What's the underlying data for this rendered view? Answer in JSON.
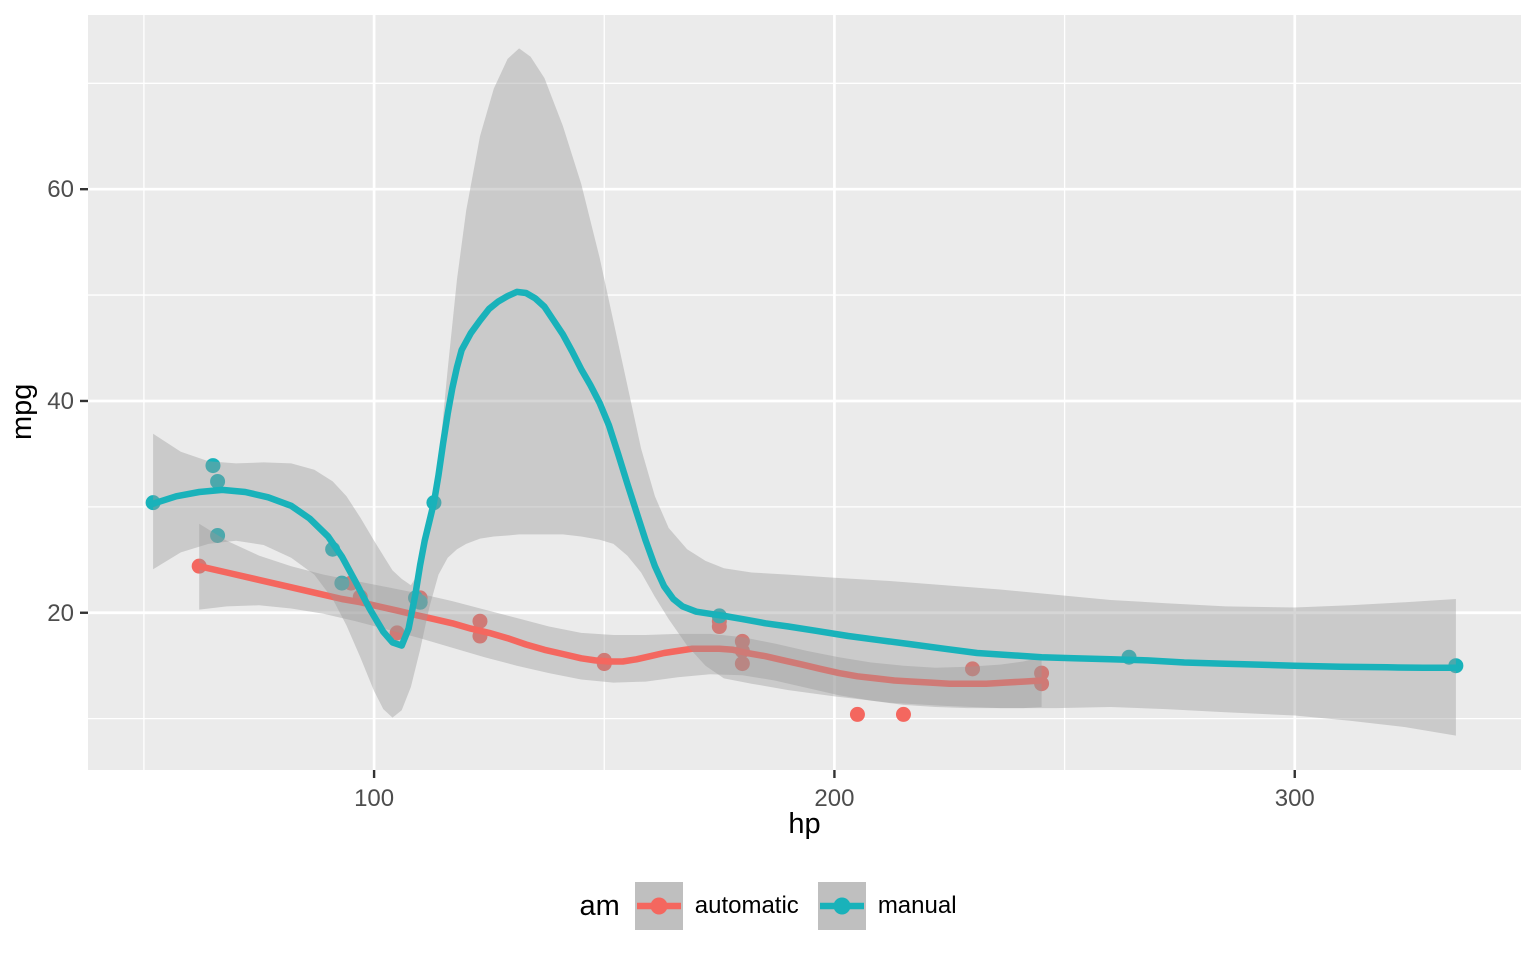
{
  "legend": {
    "title": "am",
    "key_background": "#BFBFBF",
    "items": [
      {
        "label": "automatic",
        "color": "#F4675F"
      },
      {
        "label": "manual",
        "color": "#19B2BA"
      }
    ]
  },
  "theme": {
    "panel_background": "#EBEBEB",
    "grid_color": "#FFFFFF",
    "ribbon_fill": "rgba(153,153,153,0.4)",
    "tick_color": "#333333",
    "tick_label_color": "#4D4D4D",
    "background": "#FFFFFF"
  },
  "chart_data": {
    "type": "scatter",
    "title": "",
    "xlabel": "hp",
    "ylabel": "mpg",
    "legend_position": "bottom",
    "grid": true,
    "x": {
      "domain": [
        37.85,
        349.15
      ],
      "major": [
        100,
        200,
        300
      ],
      "minor": [
        50,
        150,
        250
      ],
      "labels": [
        "100",
        "200",
        "300"
      ]
    },
    "y": {
      "domain": [
        5.15,
        76.45
      ],
      "major": [
        20,
        40,
        60
      ],
      "minor": [
        10,
        30,
        50,
        70
      ],
      "labels": [
        "20",
        "40",
        "60"
      ]
    },
    "series": [
      {
        "name": "automatic",
        "color": "#F4675F",
        "points": [
          [
            110,
            21.4
          ],
          [
            175,
            18.7
          ],
          [
            105,
            18.1
          ],
          [
            245,
            14.3
          ],
          [
            62,
            24.4
          ],
          [
            95,
            22.8
          ],
          [
            123,
            19.2
          ],
          [
            123,
            17.8
          ],
          [
            180,
            16.4
          ],
          [
            180,
            17.3
          ],
          [
            180,
            15.2
          ],
          [
            205,
            10.4
          ],
          [
            215,
            10.4
          ],
          [
            230,
            14.7
          ],
          [
            97,
            21.5
          ],
          [
            150,
            15.5
          ],
          [
            150,
            15.2
          ],
          [
            245,
            13.3
          ],
          [
            175,
            19.2
          ]
        ],
        "smooth": [
          [
            62,
            24.4
          ],
          [
            68,
            23.8
          ],
          [
            75,
            23.1
          ],
          [
            82,
            22.4
          ],
          [
            88,
            21.8
          ],
          [
            93,
            21.3
          ],
          [
            97,
            21.0
          ],
          [
            101,
            20.6
          ],
          [
            105,
            20.2
          ],
          [
            109,
            19.8
          ],
          [
            113,
            19.4
          ],
          [
            117,
            19.0
          ],
          [
            121,
            18.5
          ],
          [
            125,
            18.1
          ],
          [
            129,
            17.6
          ],
          [
            133,
            17.0
          ],
          [
            137,
            16.5
          ],
          [
            141,
            16.1
          ],
          [
            145,
            15.7
          ],
          [
            148,
            15.5
          ],
          [
            151,
            15.4
          ],
          [
            154,
            15.4
          ],
          [
            157,
            15.6
          ],
          [
            160,
            15.9
          ],
          [
            163,
            16.2
          ],
          [
            166,
            16.4
          ],
          [
            169,
            16.6
          ],
          [
            172,
            16.6
          ],
          [
            175,
            16.6
          ],
          [
            178,
            16.5
          ],
          [
            181,
            16.2
          ],
          [
            185,
            15.9
          ],
          [
            189,
            15.5
          ],
          [
            193,
            15.1
          ],
          [
            197,
            14.7
          ],
          [
            201,
            14.3
          ],
          [
            205,
            14.0
          ],
          [
            209,
            13.8
          ],
          [
            213,
            13.6
          ],
          [
            217,
            13.5
          ],
          [
            221,
            13.4
          ],
          [
            225,
            13.3
          ],
          [
            229,
            13.3
          ],
          [
            233,
            13.3
          ],
          [
            237,
            13.4
          ],
          [
            241,
            13.5
          ],
          [
            245,
            13.6
          ]
        ],
        "ribbon": [
          [
            62,
            28.4,
            20.3
          ],
          [
            68,
            26.8,
            20.6
          ],
          [
            75,
            25.4,
            20.7
          ],
          [
            82,
            24.4,
            20.4
          ],
          [
            89,
            23.6,
            19.9
          ],
          [
            96,
            23.0,
            19.2
          ],
          [
            103,
            22.4,
            18.4
          ],
          [
            110,
            21.8,
            17.6
          ],
          [
            117,
            21.1,
            16.7
          ],
          [
            124,
            20.3,
            15.8
          ],
          [
            131,
            19.5,
            15.0
          ],
          [
            138,
            18.7,
            14.3
          ],
          [
            145,
            18.1,
            13.7
          ],
          [
            152,
            17.9,
            13.4
          ],
          [
            159,
            17.9,
            13.5
          ],
          [
            166,
            18.0,
            13.9
          ],
          [
            173,
            18.0,
            14.2
          ],
          [
            180,
            17.7,
            14.1
          ],
          [
            187,
            17.1,
            13.6
          ],
          [
            194,
            16.4,
            12.9
          ],
          [
            201,
            15.8,
            12.2
          ],
          [
            208,
            15.3,
            11.7
          ],
          [
            215,
            15.0,
            11.3
          ],
          [
            222,
            14.8,
            11.1
          ],
          [
            229,
            14.9,
            11.0
          ],
          [
            236,
            15.1,
            11.0
          ],
          [
            241,
            15.4,
            11.0
          ],
          [
            245,
            15.8,
            11.1
          ]
        ]
      },
      {
        "name": "manual",
        "color": "#19B2BA",
        "points": [
          [
            110,
            21.0
          ],
          [
            110,
            21.0
          ],
          [
            93,
            22.8
          ],
          [
            66,
            32.4
          ],
          [
            52,
            30.4
          ],
          [
            65,
            33.9
          ],
          [
            66,
            27.3
          ],
          [
            91,
            26.0
          ],
          [
            113,
            30.4
          ],
          [
            264,
            15.8
          ],
          [
            175,
            19.7
          ],
          [
            335,
            15.0
          ],
          [
            109,
            21.4
          ]
        ],
        "smooth": [
          [
            52,
            30.3
          ],
          [
            57,
            31.0
          ],
          [
            62,
            31.4
          ],
          [
            67,
            31.6
          ],
          [
            72,
            31.4
          ],
          [
            77,
            30.9
          ],
          [
            82,
            30.1
          ],
          [
            86,
            28.9
          ],
          [
            90,
            27.2
          ],
          [
            93,
            25.3
          ],
          [
            96,
            22.9
          ],
          [
            99,
            20.4
          ],
          [
            102,
            18.2
          ],
          [
            104,
            17.2
          ],
          [
            106,
            16.9
          ],
          [
            107.5,
            18.5
          ],
          [
            109,
            21.8
          ],
          [
            110,
            24.5
          ],
          [
            111,
            26.8
          ],
          [
            112,
            28.6
          ],
          [
            113,
            30.4
          ],
          [
            114,
            33.0
          ],
          [
            115,
            36.0
          ],
          [
            116,
            38.8
          ],
          [
            117,
            41.2
          ],
          [
            118,
            43.2
          ],
          [
            119,
            44.8
          ],
          [
            121,
            46.4
          ],
          [
            123,
            47.6
          ],
          [
            125,
            48.7
          ],
          [
            127,
            49.4
          ],
          [
            129,
            49.9
          ],
          [
            131,
            50.3
          ],
          [
            133,
            50.2
          ],
          [
            135,
            49.7
          ],
          [
            137,
            48.9
          ],
          [
            139,
            47.6
          ],
          [
            141,
            46.3
          ],
          [
            143,
            44.7
          ],
          [
            145,
            43.0
          ],
          [
            147,
            41.5
          ],
          [
            149,
            39.8
          ],
          [
            151,
            37.7
          ],
          [
            153,
            35.0
          ],
          [
            155,
            32.2
          ],
          [
            157,
            29.5
          ],
          [
            159,
            26.8
          ],
          [
            161,
            24.4
          ],
          [
            163,
            22.5
          ],
          [
            165,
            21.3
          ],
          [
            167,
            20.6
          ],
          [
            170,
            20.1
          ],
          [
            173,
            19.9
          ],
          [
            176,
            19.7
          ],
          [
            180,
            19.4
          ],
          [
            185,
            19.0
          ],
          [
            190,
            18.7
          ],
          [
            196,
            18.3
          ],
          [
            203,
            17.8
          ],
          [
            210,
            17.4
          ],
          [
            217,
            17.0
          ],
          [
            224,
            16.6
          ],
          [
            231,
            16.2
          ],
          [
            238,
            16.0
          ],
          [
            245,
            15.8
          ],
          [
            252,
            15.7
          ],
          [
            260,
            15.6
          ],
          [
            268,
            15.5
          ],
          [
            276,
            15.3
          ],
          [
            284,
            15.2
          ],
          [
            292,
            15.1
          ],
          [
            300,
            15.0
          ],
          [
            310,
            14.9
          ],
          [
            320,
            14.85
          ],
          [
            328,
            14.8
          ],
          [
            335,
            14.8
          ]
        ],
        "ribbon": [
          [
            52,
            36.9,
            24.1
          ],
          [
            58,
            35.2,
            25.7
          ],
          [
            64,
            34.3,
            26.5
          ],
          [
            70,
            34.1,
            26.8
          ],
          [
            76,
            34.2,
            26.4
          ],
          [
            82,
            34.1,
            25.2
          ],
          [
            87,
            33.5,
            23.6
          ],
          [
            91,
            32.4,
            21.3
          ],
          [
            94,
            31.0,
            18.8
          ],
          [
            97,
            29.0,
            15.8
          ],
          [
            100,
            26.8,
            12.6
          ],
          [
            102,
            25.4,
            10.9
          ],
          [
            104,
            24.0,
            10.1
          ],
          [
            106,
            23.2,
            10.8
          ],
          [
            108,
            22.6,
            13.0
          ],
          [
            110,
            24.0,
            16.5
          ],
          [
            112,
            27.5,
            20.5
          ],
          [
            114,
            34.0,
            23.6
          ],
          [
            116,
            43.0,
            25.2
          ],
          [
            118,
            51.5,
            26.0
          ],
          [
            120,
            58.0,
            26.5
          ],
          [
            123,
            65.0,
            27.0
          ],
          [
            126,
            69.5,
            27.2
          ],
          [
            129,
            72.3,
            27.3
          ],
          [
            131.5,
            73.3,
            27.4
          ],
          [
            134,
            72.5,
            27.4
          ],
          [
            137,
            70.5,
            27.4
          ],
          [
            141,
            66.0,
            27.4
          ],
          [
            145,
            60.5,
            27.2
          ],
          [
            149,
            53.5,
            26.9
          ],
          [
            152,
            47.5,
            26.5
          ],
          [
            155,
            41.5,
            25.4
          ],
          [
            158,
            35.5,
            23.8
          ],
          [
            161,
            31.0,
            21.5
          ],
          [
            164,
            28.0,
            19.4
          ],
          [
            168,
            26.0,
            16.9
          ],
          [
            172,
            24.9,
            15.0
          ],
          [
            176,
            24.2,
            13.8
          ],
          [
            182,
            23.8,
            13.3
          ],
          [
            190,
            23.6,
            12.7
          ],
          [
            200,
            23.3,
            12.1
          ],
          [
            212,
            23.0,
            11.5
          ],
          [
            224,
            22.6,
            11.2
          ],
          [
            236,
            22.2,
            11.0
          ],
          [
            248,
            21.7,
            11.0
          ],
          [
            260,
            21.2,
            11.1
          ],
          [
            272,
            20.9,
            10.9
          ],
          [
            285,
            20.6,
            10.6
          ],
          [
            300,
            20.5,
            10.3
          ],
          [
            312,
            20.7,
            9.8
          ],
          [
            324,
            21.0,
            9.2
          ],
          [
            335,
            21.3,
            8.4
          ]
        ]
      }
    ],
    "style": {
      "point_radius": 7.5,
      "line_width": 6.5,
      "grid_major_width": 2.7,
      "grid_minor_width": 1.3,
      "tick_length": 8
    }
  }
}
